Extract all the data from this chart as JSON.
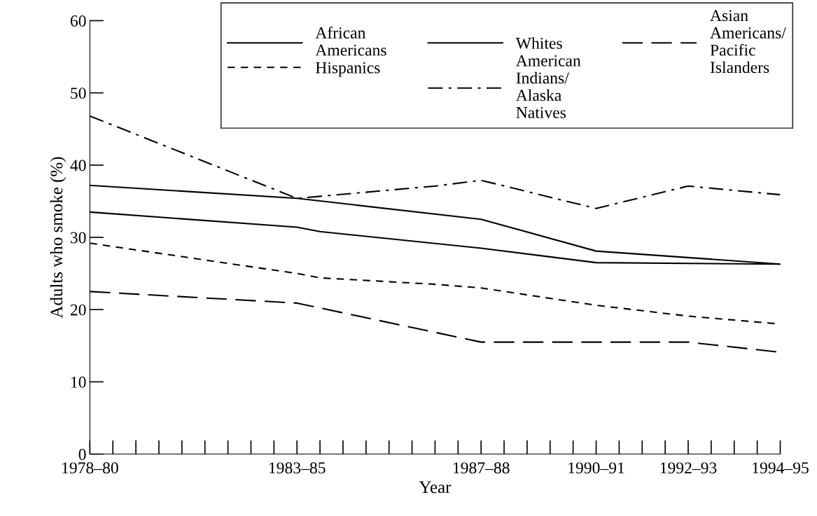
{
  "chart_data": {
    "type": "line",
    "xlabel": "Year",
    "ylabel": "Adults who smoke (%)",
    "ylim": [
      0,
      60
    ],
    "yticks": [
      0,
      10,
      20,
      30,
      40,
      50,
      60
    ],
    "categories": [
      "1978–80",
      null,
      null,
      null,
      null,
      null,
      null,
      null,
      null,
      "1983–85",
      null,
      null,
      null,
      null,
      null,
      null,
      null,
      "1987–88",
      null,
      null,
      null,
      null,
      "1990–91",
      null,
      null,
      null,
      "1992–93",
      null,
      null,
      null,
      "1994–95"
    ],
    "grid": false,
    "legend": "top right",
    "marker": "none",
    "series": [
      {
        "name": "African\nAmericans",
        "color": "#000000",
        "line_style": "solid",
        "values": [
          37.2,
          null,
          null,
          null,
          null,
          null,
          null,
          null,
          null,
          35.4,
          null,
          null,
          null,
          null,
          null,
          null,
          null,
          32.5,
          null,
          null,
          null,
          null,
          28.1,
          null,
          null,
          null,
          null,
          null,
          null,
          null,
          26.3
        ]
      },
      {
        "name": "Hispanics",
        "color": "#000000",
        "line_style": "dashed",
        "values": [
          29.2,
          null,
          null,
          null,
          null,
          null,
          null,
          null,
          null,
          25.0,
          24.4,
          null,
          null,
          null,
          null,
          23.5,
          null,
          23.0,
          null,
          null,
          null,
          null,
          20.6,
          null,
          null,
          null,
          19.1,
          null,
          null,
          null,
          18.0
        ]
      },
      {
        "name": "Whites",
        "color": "#000000",
        "line_style": "solid",
        "values": [
          33.5,
          null,
          null,
          null,
          null,
          null,
          null,
          null,
          null,
          31.4,
          30.8,
          null,
          null,
          null,
          null,
          null,
          null,
          28.5,
          null,
          null,
          null,
          null,
          26.5,
          null,
          null,
          null,
          null,
          null,
          null,
          null,
          26.3
        ]
      },
      {
        "name": "American\nIndians/\nAlaska\nNatives",
        "color": "#000000",
        "line_style": "dashdot",
        "values": [
          46.8,
          null,
          null,
          null,
          null,
          null,
          null,
          null,
          null,
          35.4,
          null,
          null,
          null,
          null,
          null,
          37.1,
          null,
          37.9,
          null,
          null,
          null,
          null,
          34.0,
          null,
          null,
          null,
          37.1,
          null,
          null,
          null,
          35.9
        ]
      },
      {
        "name": "Asian\nAmericans/\nPacific\nIslanders",
        "color": "#000000",
        "line_style": "longdash",
        "values": [
          22.5,
          null,
          null,
          null,
          null,
          null,
          null,
          null,
          null,
          20.9,
          null,
          null,
          null,
          null,
          null,
          null,
          null,
          15.5,
          null,
          null,
          null,
          null,
          15.5,
          null,
          null,
          null,
          15.5,
          null,
          null,
          null,
          14.1
        ]
      }
    ]
  }
}
